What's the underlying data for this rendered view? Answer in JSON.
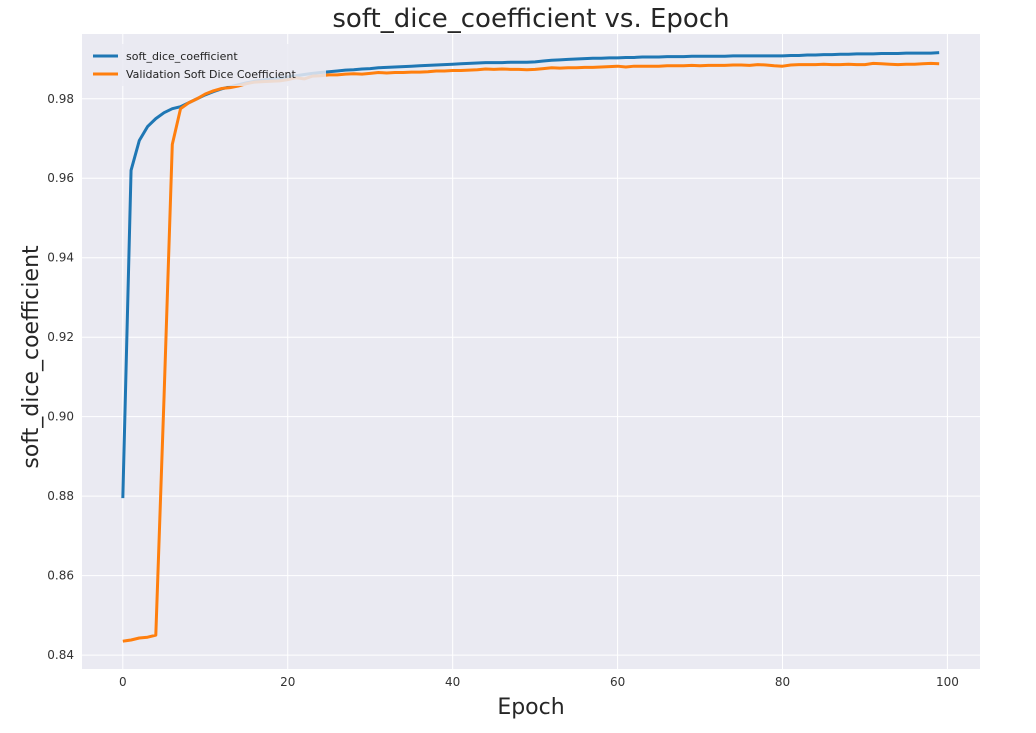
{
  "chart_data": {
    "type": "line",
    "title": "soft_dice_coefficient vs. Epoch",
    "xlabel": "Epoch",
    "ylabel": "soft_dice_coefficient",
    "xlim": [
      -4.95,
      103.95
    ],
    "ylim": [
      0.8365,
      0.9963
    ],
    "xticks": [
      0,
      20,
      40,
      60,
      80,
      100
    ],
    "xtick_labels": [
      "0",
      "20",
      "40",
      "60",
      "80",
      "100"
    ],
    "yticks": [
      0.84,
      0.86,
      0.88,
      0.9,
      0.92,
      0.94,
      0.96,
      0.98
    ],
    "ytick_labels": [
      "0.84",
      "0.86",
      "0.88",
      "0.90",
      "0.92",
      "0.94",
      "0.96",
      "0.98"
    ],
    "grid": true,
    "legend_position": "top-left",
    "series": [
      {
        "name": "soft_dice_coefficient",
        "color": "#1f77b4",
        "x": [
          0,
          1,
          2,
          3,
          4,
          5,
          6,
          7,
          8,
          9,
          10,
          11,
          12,
          13,
          14,
          15,
          16,
          17,
          18,
          19,
          20,
          21,
          22,
          23,
          24,
          25,
          26,
          27,
          28,
          29,
          30,
          31,
          32,
          33,
          34,
          35,
          36,
          37,
          38,
          39,
          40,
          41,
          42,
          43,
          44,
          45,
          46,
          47,
          48,
          49,
          50,
          51,
          52,
          53,
          54,
          55,
          56,
          57,
          58,
          59,
          60,
          61,
          62,
          63,
          64,
          65,
          66,
          67,
          68,
          69,
          70,
          71,
          72,
          73,
          74,
          75,
          76,
          77,
          78,
          79,
          80,
          81,
          82,
          83,
          84,
          85,
          86,
          87,
          88,
          89,
          90,
          91,
          92,
          93,
          94,
          95,
          96,
          97,
          98,
          99
        ],
        "y": [
          0.8795,
          0.962,
          0.9695,
          0.973,
          0.975,
          0.9765,
          0.9775,
          0.978,
          0.979,
          0.98,
          0.981,
          0.9818,
          0.9825,
          0.983,
          0.9835,
          0.984,
          0.9844,
          0.9847,
          0.985,
          0.9852,
          0.9855,
          0.9858,
          0.9861,
          0.9864,
          0.9866,
          0.9868,
          0.987,
          0.9872,
          0.9873,
          0.9875,
          0.9876,
          0.9878,
          0.9879,
          0.988,
          0.9881,
          0.9882,
          0.9883,
          0.9884,
          0.9885,
          0.9886,
          0.9887,
          0.9888,
          0.9889,
          0.989,
          0.9891,
          0.9891,
          0.9891,
          0.9892,
          0.9892,
          0.9892,
          0.9893,
          0.9895,
          0.9897,
          0.9898,
          0.9899,
          0.99,
          0.9901,
          0.9902,
          0.9902,
          0.9903,
          0.9903,
          0.9904,
          0.9904,
          0.9905,
          0.9905,
          0.9905,
          0.9906,
          0.9906,
          0.9906,
          0.9907,
          0.9907,
          0.9907,
          0.9907,
          0.9907,
          0.9908,
          0.9908,
          0.9908,
          0.9908,
          0.9908,
          0.9908,
          0.9908,
          0.9909,
          0.9909,
          0.991,
          0.991,
          0.9911,
          0.9911,
          0.9912,
          0.9912,
          0.9913,
          0.9913,
          0.9913,
          0.9914,
          0.9914,
          0.9914,
          0.9915,
          0.9915,
          0.9915,
          0.9915,
          0.9916
        ]
      },
      {
        "name": "Validation Soft Dice Coefficient",
        "color": "#ff7f0e",
        "x": [
          0,
          1,
          2,
          3,
          4,
          5,
          6,
          7,
          8,
          9,
          10,
          11,
          12,
          13,
          14,
          15,
          16,
          17,
          18,
          19,
          20,
          21,
          22,
          23,
          24,
          25,
          26,
          27,
          28,
          29,
          30,
          31,
          32,
          33,
          34,
          35,
          36,
          37,
          38,
          39,
          40,
          41,
          42,
          43,
          44,
          45,
          46,
          47,
          48,
          49,
          50,
          51,
          52,
          53,
          54,
          55,
          56,
          57,
          58,
          59,
          60,
          61,
          62,
          63,
          64,
          65,
          66,
          67,
          68,
          69,
          70,
          71,
          72,
          73,
          74,
          75,
          76,
          77,
          78,
          79,
          80,
          81,
          82,
          83,
          84,
          85,
          86,
          87,
          88,
          89,
          90,
          91,
          92,
          93,
          94,
          95,
          96,
          97,
          98,
          99
        ],
        "y": [
          0.8435,
          0.8438,
          0.8443,
          0.8445,
          0.845,
          0.905,
          0.9685,
          0.9775,
          0.979,
          0.98,
          0.9812,
          0.982,
          0.9826,
          0.9828,
          0.9832,
          0.9838,
          0.9842,
          0.9843,
          0.9844,
          0.9845,
          0.9848,
          0.9853,
          0.985,
          0.9857,
          0.9858,
          0.986,
          0.986,
          0.9862,
          0.9863,
          0.9862,
          0.9864,
          0.9866,
          0.9865,
          0.9866,
          0.9866,
          0.9867,
          0.9867,
          0.9868,
          0.987,
          0.987,
          0.9871,
          0.9871,
          0.9872,
          0.9873,
          0.9875,
          0.9874,
          0.9875,
          0.9874,
          0.9874,
          0.9873,
          0.9874,
          0.9876,
          0.9878,
          0.9877,
          0.9878,
          0.9878,
          0.9879,
          0.9879,
          0.988,
          0.9881,
          0.9882,
          0.988,
          0.9882,
          0.9882,
          0.9882,
          0.9882,
          0.9883,
          0.9883,
          0.9883,
          0.9884,
          0.9883,
          0.9884,
          0.9884,
          0.9884,
          0.9885,
          0.9885,
          0.9884,
          0.9886,
          0.9885,
          0.9883,
          0.9882,
          0.9885,
          0.9886,
          0.9886,
          0.9886,
          0.9887,
          0.9886,
          0.9886,
          0.9887,
          0.9886,
          0.9886,
          0.9889,
          0.9888,
          0.9887,
          0.9886,
          0.9887,
          0.9887,
          0.9888,
          0.9889,
          0.9888
        ]
      }
    ]
  }
}
